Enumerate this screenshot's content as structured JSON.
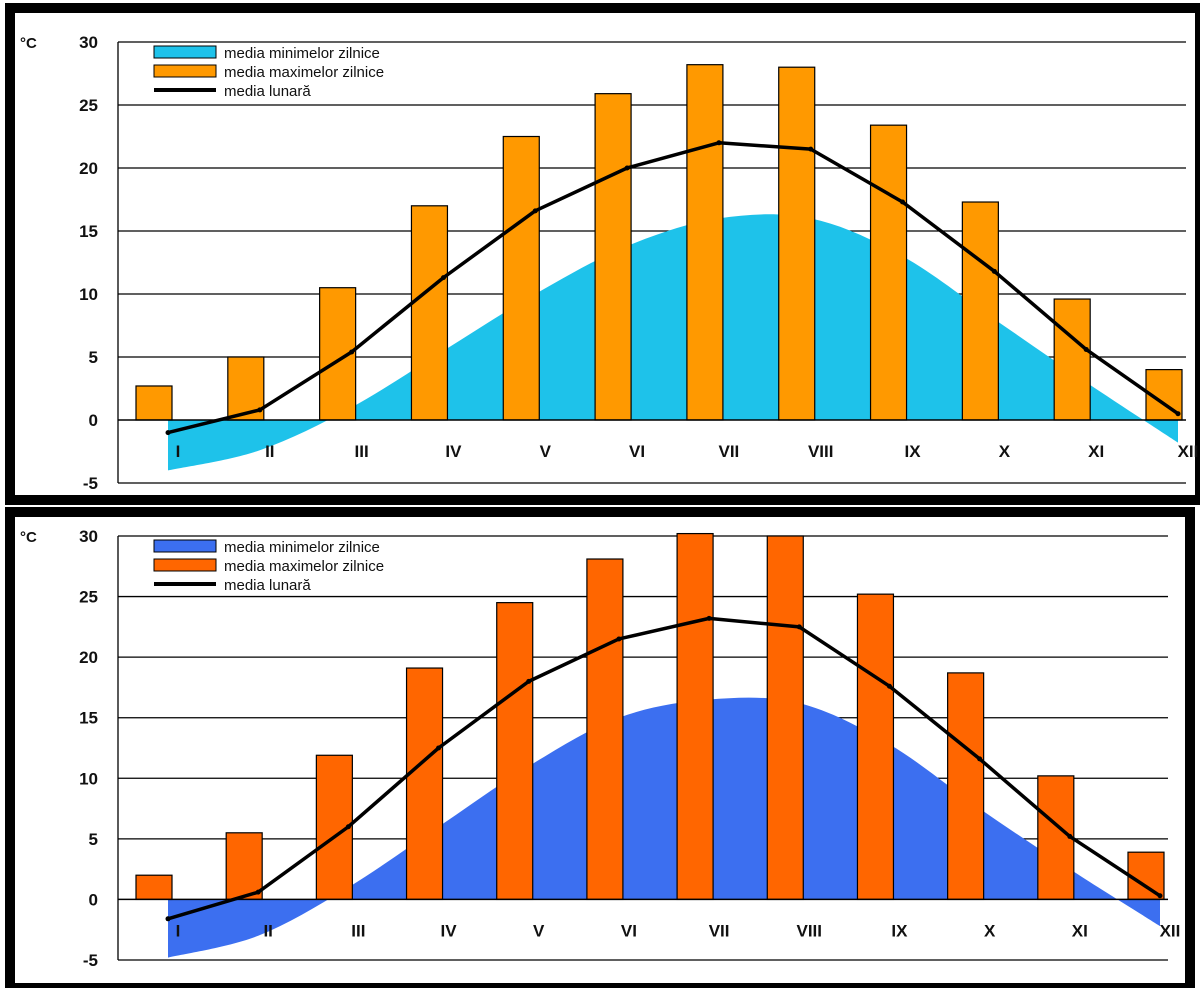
{
  "chart_data": [
    {
      "type": "bar",
      "unit_label": "°C",
      "categories": [
        "I",
        "II",
        "III",
        "IV",
        "V",
        "VI",
        "VII",
        "VIII",
        "IX",
        "X",
        "XI",
        "XII"
      ],
      "ylim": [
        -5,
        30
      ],
      "yticks": [
        30,
        25,
        20,
        15,
        10,
        5,
        0,
        -5
      ],
      "grid": true,
      "legend_position": "top-left",
      "series": [
        {
          "name": "media minimelor zilnice",
          "kind": "area",
          "color": "#1ec2ea",
          "values": [
            -4.0,
            -2.4,
            1.0,
            5.5,
            10.0,
            13.8,
            16.0,
            16.0,
            13.0,
            8.0,
            3.0,
            -1.8
          ]
        },
        {
          "name": "media maximelor zilnice",
          "kind": "bar",
          "color": "#ff9900",
          "values": [
            2.7,
            5.0,
            10.5,
            17.0,
            22.5,
            25.9,
            28.2,
            28.0,
            23.4,
            17.3,
            9.6,
            4.0
          ]
        },
        {
          "name": "media lunară",
          "kind": "line",
          "color": "#000000",
          "values": [
            -1.0,
            0.8,
            5.4,
            11.3,
            16.6,
            20.0,
            22.0,
            21.5,
            17.3,
            11.8,
            5.6,
            0.5
          ]
        }
      ]
    },
    {
      "type": "bar",
      "unit_label": "°C",
      "categories": [
        "I",
        "II",
        "III",
        "IV",
        "V",
        "VI",
        "VII",
        "VIII",
        "IX",
        "X",
        "XI",
        "XII"
      ],
      "ylim": [
        -5,
        30
      ],
      "yticks": [
        30,
        25,
        20,
        15,
        10,
        5,
        0,
        -5
      ],
      "grid": true,
      "legend_position": "top-left",
      "series": [
        {
          "name": "media minimelor zilnice",
          "kind": "area",
          "color": "#3c6ff0",
          "values": [
            -4.8,
            -3.0,
            1.0,
            6.0,
            11.0,
            15.0,
            16.5,
            16.2,
            12.8,
            7.5,
            2.5,
            -2.2
          ]
        },
        {
          "name": "media maximelor zilnice",
          "kind": "bar",
          "color": "#ff6600",
          "values": [
            2.0,
            5.5,
            11.9,
            19.1,
            24.5,
            28.1,
            30.2,
            30.0,
            25.2,
            18.7,
            10.2,
            3.9
          ]
        },
        {
          "name": "media lunară",
          "kind": "line",
          "color": "#000000",
          "values": [
            -1.6,
            0.6,
            6.0,
            12.5,
            18.0,
            21.5,
            23.2,
            22.5,
            17.6,
            11.6,
            5.2,
            0.3
          ]
        }
      ]
    }
  ]
}
